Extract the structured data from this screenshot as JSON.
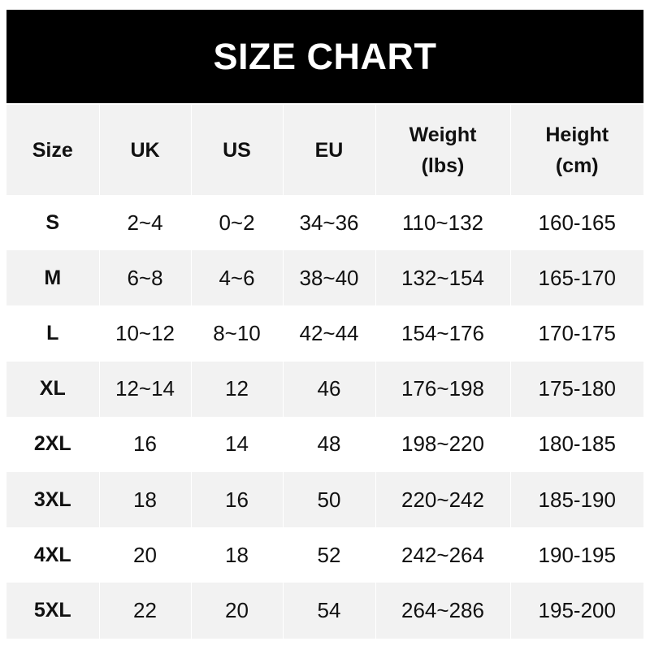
{
  "title": "SIZE CHART",
  "headers": [
    {
      "line1": "Size",
      "line2": ""
    },
    {
      "line1": "UK",
      "line2": ""
    },
    {
      "line1": "US",
      "line2": ""
    },
    {
      "line1": "EU",
      "line2": ""
    },
    {
      "line1": "Weight",
      "line2": "(lbs)"
    },
    {
      "line1": "Height",
      "line2": "(cm)"
    }
  ],
  "rows": [
    [
      "S",
      "2~4",
      "0~2",
      "34~36",
      "110~132",
      "160-165"
    ],
    [
      "M",
      "6~8",
      "4~6",
      "38~40",
      "132~154",
      "165-170"
    ],
    [
      "L",
      "10~12",
      "8~10",
      "42~44",
      "154~176",
      "170-175"
    ],
    [
      "XL",
      "12~14",
      "12",
      "46",
      "176~198",
      "175-180"
    ],
    [
      "2XL",
      "16",
      "14",
      "48",
      "198~220",
      "180-185"
    ],
    [
      "3XL",
      "18",
      "16",
      "50",
      "220~242",
      "185-190"
    ],
    [
      "4XL",
      "20",
      "18",
      "52",
      "242~264",
      "190-195"
    ],
    [
      "5XL",
      "22",
      "20",
      "54",
      "264~286",
      "195-200"
    ]
  ],
  "colors": {
    "banner": "#000000",
    "title": "#ffffff",
    "stripe": "#f2f2f2",
    "text": "#111111"
  }
}
